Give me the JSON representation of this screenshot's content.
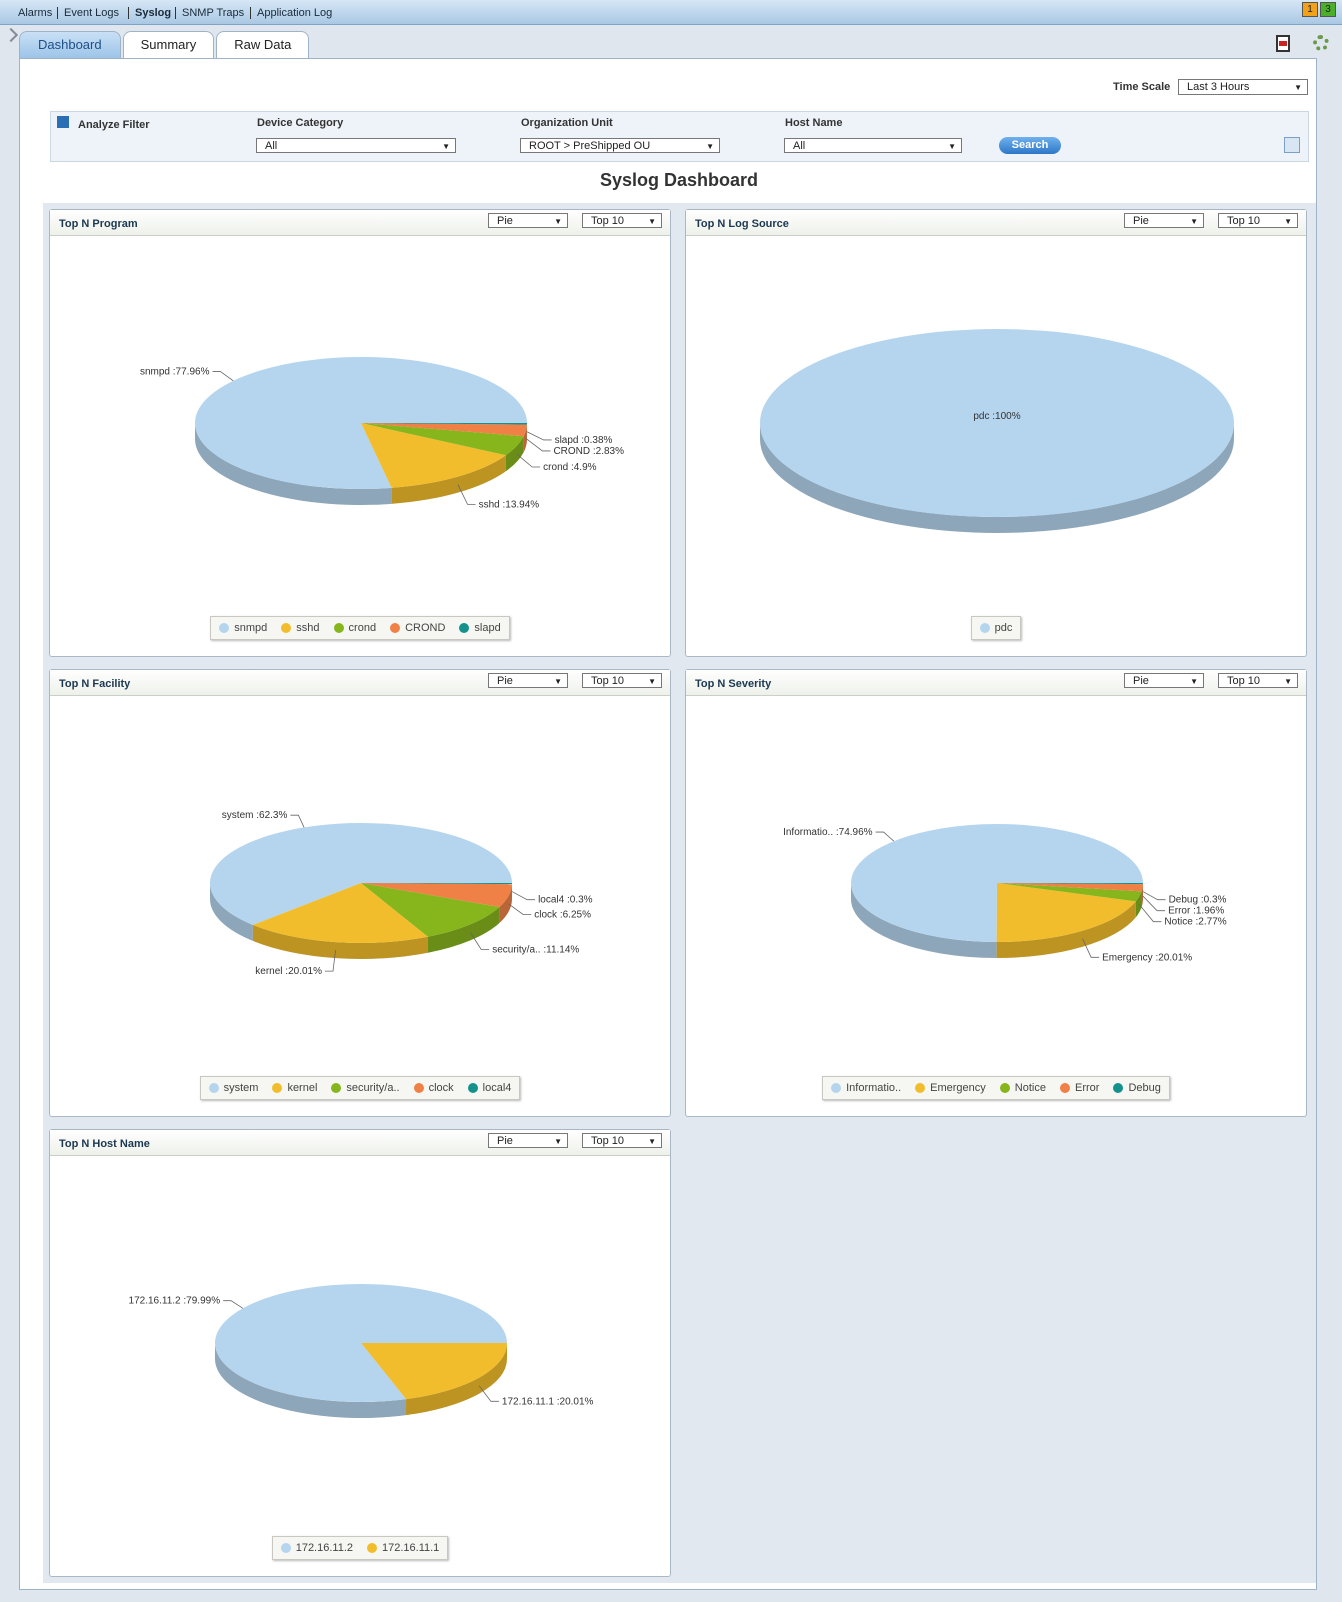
{
  "nav": {
    "links": [
      "Alarms",
      "Event Logs",
      "Syslog",
      "SNMP Traps",
      "Application Log"
    ],
    "badges": [
      1,
      3
    ]
  },
  "tabs": [
    "Dashboard",
    "Summary",
    "Raw Data"
  ],
  "time_scale": {
    "label": "Time Scale",
    "value": "Last 3 Hours"
  },
  "filter": {
    "title": "Analyze Filter",
    "fields": [
      {
        "label": "Device Category",
        "value": "All"
      },
      {
        "label": "Organization Unit",
        "value": "ROOT > PreShipped OU"
      },
      {
        "label": "Host Name",
        "value": "All"
      }
    ],
    "button": "Search"
  },
  "dashboard_title": "Syslog Dashboard",
  "chart_data": [
    {
      "type": "pie",
      "title": "Top N Program",
      "chart_select": "Pie",
      "top_select": "Top 10",
      "categories": [
        "snmpd",
        "sshd",
        "crond",
        "CROND",
        "slapd"
      ],
      "values": [
        77.96,
        13.94,
        4.9,
        2.83,
        0.38
      ],
      "value_labels": [
        "snmpd :77.96%",
        "sshd :13.94%",
        "crond :4.9%",
        "CROND :2.83%",
        "slapd :0.38%"
      ],
      "colors": [
        "#b5d5ef",
        "#f2bd2c",
        "#86b51c",
        "#ef8146",
        "#14918c"
      ]
    },
    {
      "type": "pie",
      "title": "Top N Log Source",
      "chart_select": "Pie",
      "top_select": "Top 10",
      "categories": [
        "pdc"
      ],
      "values": [
        100
      ],
      "value_labels": [
        "pdc :100%"
      ],
      "colors": [
        "#b5d5ef"
      ]
    },
    {
      "type": "pie",
      "title": "Top N Facility",
      "chart_select": "Pie",
      "top_select": "Top 10",
      "categories": [
        "system",
        "kernel",
        "security/a..",
        "clock",
        "local4"
      ],
      "values": [
        62.3,
        20.01,
        11.14,
        6.25,
        0.3
      ],
      "value_labels": [
        "system :62.3%",
        "kernel :20.01%",
        "security/a.. :11.14%",
        "clock :6.25%",
        "local4 :0.3%"
      ],
      "colors": [
        "#b5d5ef",
        "#f2bd2c",
        "#86b51c",
        "#ef8146",
        "#14918c"
      ]
    },
    {
      "type": "pie",
      "title": "Top N Severity",
      "chart_select": "Pie",
      "top_select": "Top 10",
      "categories": [
        "Informatio..",
        "Emergency",
        "Notice",
        "Error",
        "Debug"
      ],
      "values": [
        74.96,
        20.01,
        2.77,
        1.96,
        0.3
      ],
      "value_labels": [
        "Informatio.. :74.96%",
        "Emergency :20.01%",
        "Notice :2.77%",
        "Error :1.96%",
        "Debug :0.3%"
      ],
      "colors": [
        "#b5d5ef",
        "#f2bd2c",
        "#86b51c",
        "#ef8146",
        "#14918c"
      ]
    },
    {
      "type": "pie",
      "title": "Top N Host Name",
      "chart_select": "Pie",
      "top_select": "Top 10",
      "categories": [
        "172.16.11.2",
        "172.16.11.1"
      ],
      "values": [
        79.99,
        20.01
      ],
      "value_labels": [
        "172.16.11.2 :79.99%",
        "172.16.11.1 :20.01%"
      ],
      "colors": [
        "#b5d5ef",
        "#f2bd2c"
      ]
    }
  ]
}
